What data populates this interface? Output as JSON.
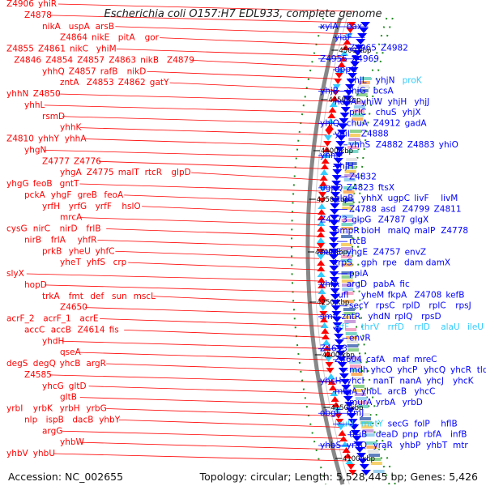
{
  "title": "Escherichia coli O157:H7 EDL933, complete genome",
  "footer": {
    "accession": "Accession: NC_002655",
    "summary": "Topology: circular; Length: 5,528,445 bp; Genes: 5,426"
  },
  "colors": {
    "forward_strand": "#ff0000",
    "reverse_strand": "#0000ff",
    "rna": "#33ccff",
    "backbone": "#888888",
    "dotted_guide": "#228b22"
  },
  "ticks": [
    "4500 kbp",
    "4450 kbp",
    "4400 kbp",
    "4350 kbp",
    "4300 kbp",
    "4250 kbp",
    "4200 kbp",
    "4150 kbp",
    "4100 kbp"
  ],
  "left_labels": [
    {
      "rows": [
        [
          "Z4906",
          "yhiR"
        ]
      ]
    },
    {
      "rows": [
        [
          "Z4878"
        ]
      ]
    },
    {
      "rows": [
        [
          "nikA",
          "uspA",
          "arsB"
        ]
      ]
    },
    {
      "rows": [
        [
          "Z4864",
          "nikE",
          "pitA",
          "gor"
        ]
      ]
    },
    {
      "rows": [
        [
          "Z4855",
          "Z4861",
          "nikC",
          "yhiM"
        ]
      ]
    },
    {
      "rows": [
        [
          "Z4846",
          "Z4854",
          "Z4857",
          "Z4863",
          "nikB",
          "Z4879"
        ]
      ]
    },
    {
      "rows": [
        [
          "yhhQ",
          "Z4857",
          "rafB",
          "nikD"
        ]
      ]
    },
    {
      "rows": [
        [
          "zntA",
          "Z4853",
          "Z4862",
          "gatY"
        ]
      ]
    },
    {
      "rows": [
        [
          "yhhN",
          "Z4850"
        ]
      ]
    },
    {
      "rows": [
        [
          "yhhL"
        ]
      ]
    },
    {
      "rows": [
        [
          "rsmD"
        ]
      ]
    },
    {
      "rows": [
        [
          "yhhK"
        ]
      ]
    },
    {
      "rows": [
        [
          "Z4810",
          "yhhY",
          "yhhA"
        ]
      ]
    },
    {
      "rows": [
        [
          "yhgN"
        ]
      ]
    },
    {
      "rows": [
        [
          "Z4777",
          "Z4776"
        ]
      ]
    },
    {
      "rows": [
        [
          "yhgA",
          "Z4775",
          "malT",
          "rtcR",
          "glpD"
        ]
      ]
    },
    {
      "rows": [
        [
          "yhgG",
          "feoB",
          "gntT"
        ]
      ]
    },
    {
      "rows": [
        [
          "pckA",
          "yhgF",
          "greB",
          "feoA"
        ]
      ]
    },
    {
      "rows": [
        [
          "yrfH",
          "yrfG",
          "yrfF",
          "hslO"
        ]
      ]
    },
    {
      "rows": [
        [
          "mrcA"
        ]
      ]
    },
    {
      "rows": [
        [
          "cysG",
          "nirC",
          "nirD",
          "frlB"
        ]
      ]
    },
    {
      "rows": [
        [
          "nirB",
          "frlA",
          "yhfR"
        ]
      ]
    },
    {
      "rows": [
        [
          "prkB",
          "yheU",
          "yhfC"
        ]
      ]
    },
    {
      "rows": [
        [
          "yheT",
          "yhfS",
          "crp"
        ]
      ]
    },
    {
      "rows": [
        [
          "slyX"
        ]
      ]
    },
    {
      "rows": [
        [
          "hopD"
        ]
      ]
    },
    {
      "rows": [
        [
          "trkA",
          "fmt",
          "def",
          "sun",
          "mscL"
        ]
      ]
    },
    {
      "rows": [
        [
          "Z4650"
        ]
      ]
    },
    {
      "rows": [
        [
          "acrF_2",
          "acrF_1",
          "acrE"
        ]
      ]
    },
    {
      "rows": [
        [
          "accC",
          "accB",
          "Z4614",
          "fis"
        ]
      ]
    },
    {
      "rows": [
        [
          "yhdH"
        ]
      ]
    },
    {
      "rows": [
        [
          "qseA"
        ]
      ]
    },
    {
      "rows": [
        [
          "degS",
          "degQ",
          "yhcB",
          "argR"
        ]
      ]
    },
    {
      "rows": [
        [
          "Z4585"
        ]
      ]
    },
    {
      "rows": [
        [
          "yhcG",
          "gltD"
        ]
      ]
    },
    {
      "rows": [
        [
          "gltB"
        ]
      ]
    },
    {
      "rows": [
        [
          "yrbI",
          "yrbK",
          "yrbH",
          "yrbG"
        ]
      ]
    },
    {
      "rows": [
        [
          "nlp",
          "ispB",
          "dacB",
          "yhbY"
        ]
      ]
    },
    {
      "rows": [
        [
          "argG"
        ]
      ]
    },
    {
      "rows": [
        [
          "yhbW"
        ]
      ]
    },
    {
      "rows": [
        [
          "yhbV",
          "yhbU"
        ]
      ]
    }
  ],
  "right_labels": [
    {
      "rows": [
        [
          "xylA",
          "bax"
        ]
      ]
    },
    {
      "rows": [
        [
          "yiaF"
        ]
      ]
    },
    {
      "rows": [
        [
          "Z4965",
          "Z4982"
        ]
      ]
    },
    {
      "rows": [
        [
          "Z4955",
          "Z4969"
        ]
      ]
    },
    {
      "rows": [
        [
          "dppC"
        ]
      ]
    },
    {
      "rows": [
        [
          "yhjL",
          "yhjN",
          "proK"
        ]
      ]
    },
    {
      "rows": [
        [
          "yhjB",
          "yhjG",
          "bcsA"
        ]
      ]
    },
    {
      "rows": [
        [
          "hdeA",
          "yhiW",
          "yhjH",
          "yhjJ"
        ]
      ]
    },
    {
      "rows": [
        [
          "prlC",
          "chuS",
          "yhjX"
        ]
      ]
    },
    {
      "rows": [
        [
          "yhiQ",
          "chuA",
          "Z4912",
          "gadA"
        ]
      ]
    },
    {
      "rows": [
        [
          "yhiI",
          "Z4888"
        ]
      ]
    },
    {
      "rows": [
        [
          "yhhS",
          "Z4882",
          "Z4883",
          "yhiO"
        ]
      ]
    },
    {
      "rows": [
        [
          "yhhP"
        ]
      ]
    },
    {
      "rows": [
        [
          "yhjH"
        ]
      ]
    },
    {
      "rows": [
        [
          "Z4832"
        ]
      ]
    },
    {
      "rows": [
        [
          "ugpQ",
          "Z4823",
          "ftsX"
        ]
      ]
    },
    {
      "rows": [
        [
          "glgB",
          "yhhX",
          "ugpC",
          "livF",
          "livM"
        ]
      ]
    },
    {
      "rows": [
        [
          "Z4788",
          "asd",
          "Z4799",
          "Z4811"
        ]
      ]
    },
    {
      "rows": [
        [
          "Z4773",
          "glpG",
          "Z4787",
          "glgX"
        ]
      ]
    },
    {
      "rows": [
        [
          "ompR",
          "bioH",
          "malQ",
          "malP",
          "Z4778"
        ]
      ]
    },
    {
      "rows": [
        [
          "rtcB"
        ]
      ]
    },
    {
      "rows": [
        [
          "nudE",
          "yhgE",
          "Z4757",
          "envZ"
        ]
      ]
    },
    {
      "rows": [
        [
          "trpS",
          "gph",
          "rpe",
          "dam",
          "damX"
        ]
      ]
    },
    {
      "rows": [
        [
          "ppiA"
        ]
      ]
    },
    {
      "rows": [
        [
          "yhfA",
          "argD",
          "pabA",
          "fic"
        ]
      ]
    },
    {
      "rows": [
        [
          "tufl",
          "yheM",
          "fkpA",
          "Z4708",
          "kefB"
        ]
      ]
    },
    {
      "rows": [
        [
          "secY",
          "rpsC",
          "rplD",
          "rplC",
          "rpsJ"
        ]
      ]
    },
    {
      "rows": [
        [
          "smf",
          "zntR",
          "yhdN",
          "rplQ",
          "rpsD"
        ]
      ]
    },
    {
      "rows": [
        [
          "rrfF",
          "thrV",
          "rrfD",
          "rrlD",
          "alaU",
          "ileU"
        ]
      ]
    },
    {
      "rows": [
        [
          "envR"
        ]
      ]
    },
    {
      "rows": [
        [
          "Z4613"
        ]
      ]
    },
    {
      "rows": [
        [
          "Z4604",
          "cafA",
          "maf",
          "mreC"
        ]
      ]
    },
    {
      "rows": [
        [
          "mdh",
          "yhcO",
          "yhcP",
          "yhcQ",
          "yhcR",
          "tldD"
        ]
      ]
    },
    {
      "rows": [
        [
          "yhcH",
          "yhcI",
          "nanT",
          "nanA",
          "yhcJ",
          "yhcK"
        ]
      ]
    },
    {
      "rows": [
        [
          "mtgA",
          "yhbL",
          "arcB",
          "yhcC"
        ]
      ]
    },
    {
      "rows": [
        [
          "murA",
          "yrbA",
          "yrbD"
        ]
      ]
    },
    {
      "rows": [
        [
          "obgE",
          "rrmJ"
        ]
      ]
    },
    {
      "rows": [
        [
          "leuU",
          "metY",
          "secG",
          "folP",
          "hflB"
        ]
      ]
    },
    {
      "rows": [
        [
          "truB",
          "deaD",
          "pnp",
          "rbfA",
          "infB"
        ]
      ]
    },
    {
      "rows": [
        [
          "yhbS",
          "yraQ",
          "yraR",
          "yhbP",
          "yhbT",
          "mtr"
        ]
      ]
    }
  ]
}
